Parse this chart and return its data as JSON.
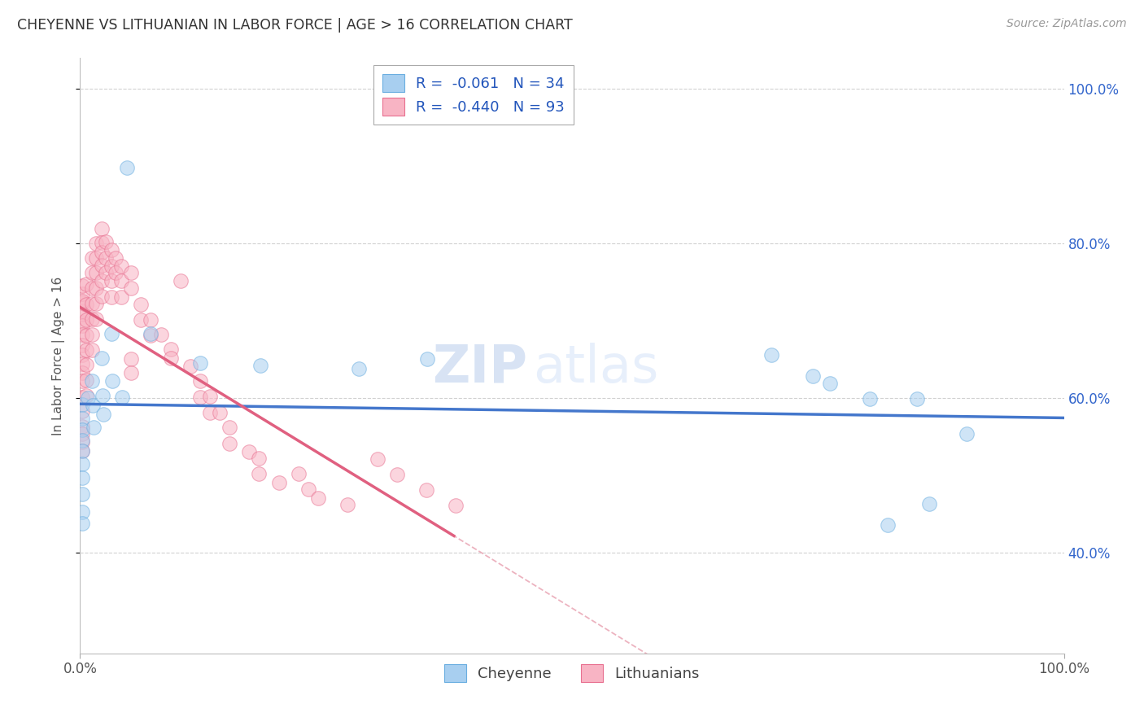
{
  "title": "CHEYENNE VS LITHUANIAN IN LABOR FORCE | AGE > 16 CORRELATION CHART",
  "source": "Source: ZipAtlas.com",
  "ylabel": "In Labor Force | Age > 16",
  "xlim": [
    0.0,
    1.0
  ],
  "ylim": [
    0.27,
    1.04
  ],
  "yticks": [
    0.4,
    0.6,
    0.8,
    1.0
  ],
  "ytick_labels": [
    "40.0%",
    "60.0%",
    "80.0%",
    "100.0%"
  ],
  "xtick_left": "0.0%",
  "xtick_right": "100.0%",
  "cheyenne_color": "#a8cff0",
  "cheyenne_edge": "#6aaee0",
  "lithuanian_color": "#f8b4c4",
  "lithuanian_edge": "#e87090",
  "trend_cheyenne_color": "#4477cc",
  "trend_lithuanian_color": "#e06080",
  "trend_dashed_color": "#e8a0b0",
  "watermark_zip": "ZIP",
  "watermark_atlas": "atlas",
  "cheyenne_points": [
    [
      0.002,
      0.592
    ],
    [
      0.002,
      0.574
    ],
    [
      0.002,
      0.559
    ],
    [
      0.002,
      0.546
    ],
    [
      0.002,
      0.532
    ],
    [
      0.002,
      0.515
    ],
    [
      0.002,
      0.497
    ],
    [
      0.002,
      0.476
    ],
    [
      0.002,
      0.453
    ],
    [
      0.002,
      0.438
    ],
    [
      0.008,
      0.6
    ],
    [
      0.012,
      0.622
    ],
    [
      0.013,
      0.591
    ],
    [
      0.014,
      0.562
    ],
    [
      0.022,
      0.652
    ],
    [
      0.023,
      0.603
    ],
    [
      0.024,
      0.579
    ],
    [
      0.032,
      0.683
    ],
    [
      0.033,
      0.622
    ],
    [
      0.043,
      0.601
    ],
    [
      0.048,
      0.898
    ],
    [
      0.072,
      0.683
    ],
    [
      0.122,
      0.646
    ],
    [
      0.183,
      0.642
    ],
    [
      0.283,
      0.638
    ],
    [
      0.353,
      0.651
    ],
    [
      0.703,
      0.656
    ],
    [
      0.745,
      0.629
    ],
    [
      0.762,
      0.619
    ],
    [
      0.803,
      0.599
    ],
    [
      0.821,
      0.436
    ],
    [
      0.851,
      0.599
    ],
    [
      0.863,
      0.463
    ],
    [
      0.901,
      0.554
    ]
  ],
  "lithuanian_points": [
    [
      0.002,
      0.698
    ],
    [
      0.002,
      0.713
    ],
    [
      0.002,
      0.724
    ],
    [
      0.002,
      0.735
    ],
    [
      0.002,
      0.746
    ],
    [
      0.002,
      0.726
    ],
    [
      0.002,
      0.709
    ],
    [
      0.002,
      0.694
    ],
    [
      0.002,
      0.682
    ],
    [
      0.002,
      0.669
    ],
    [
      0.002,
      0.656
    ],
    [
      0.002,
      0.645
    ],
    [
      0.002,
      0.633
    ],
    [
      0.002,
      0.622
    ],
    [
      0.002,
      0.601
    ],
    [
      0.002,
      0.583
    ],
    [
      0.002,
      0.564
    ],
    [
      0.002,
      0.554
    ],
    [
      0.002,
      0.543
    ],
    [
      0.002,
      0.532
    ],
    [
      0.006,
      0.748
    ],
    [
      0.006,
      0.721
    ],
    [
      0.006,
      0.701
    ],
    [
      0.006,
      0.681
    ],
    [
      0.006,
      0.662
    ],
    [
      0.006,
      0.643
    ],
    [
      0.006,
      0.623
    ],
    [
      0.006,
      0.603
    ],
    [
      0.012,
      0.781
    ],
    [
      0.012,
      0.762
    ],
    [
      0.012,
      0.742
    ],
    [
      0.012,
      0.722
    ],
    [
      0.012,
      0.702
    ],
    [
      0.012,
      0.682
    ],
    [
      0.012,
      0.662
    ],
    [
      0.016,
      0.8
    ],
    [
      0.016,
      0.781
    ],
    [
      0.016,
      0.762
    ],
    [
      0.016,
      0.742
    ],
    [
      0.016,
      0.722
    ],
    [
      0.016,
      0.702
    ],
    [
      0.022,
      0.819
    ],
    [
      0.022,
      0.801
    ],
    [
      0.022,
      0.789
    ],
    [
      0.022,
      0.772
    ],
    [
      0.022,
      0.752
    ],
    [
      0.022,
      0.732
    ],
    [
      0.026,
      0.802
    ],
    [
      0.026,
      0.781
    ],
    [
      0.026,
      0.762
    ],
    [
      0.032,
      0.792
    ],
    [
      0.032,
      0.771
    ],
    [
      0.032,
      0.752
    ],
    [
      0.032,
      0.731
    ],
    [
      0.036,
      0.781
    ],
    [
      0.036,
      0.762
    ],
    [
      0.042,
      0.771
    ],
    [
      0.042,
      0.752
    ],
    [
      0.042,
      0.731
    ],
    [
      0.052,
      0.762
    ],
    [
      0.052,
      0.742
    ],
    [
      0.052,
      0.651
    ],
    [
      0.052,
      0.633
    ],
    [
      0.062,
      0.721
    ],
    [
      0.062,
      0.701
    ],
    [
      0.072,
      0.701
    ],
    [
      0.072,
      0.681
    ],
    [
      0.082,
      0.682
    ],
    [
      0.092,
      0.663
    ],
    [
      0.092,
      0.652
    ],
    [
      0.102,
      0.752
    ],
    [
      0.112,
      0.641
    ],
    [
      0.122,
      0.622
    ],
    [
      0.122,
      0.601
    ],
    [
      0.132,
      0.602
    ],
    [
      0.132,
      0.581
    ],
    [
      0.142,
      0.581
    ],
    [
      0.152,
      0.562
    ],
    [
      0.152,
      0.541
    ],
    [
      0.172,
      0.531
    ],
    [
      0.182,
      0.522
    ],
    [
      0.182,
      0.502
    ],
    [
      0.202,
      0.491
    ],
    [
      0.222,
      0.502
    ],
    [
      0.232,
      0.482
    ],
    [
      0.242,
      0.471
    ],
    [
      0.272,
      0.462
    ],
    [
      0.302,
      0.521
    ],
    [
      0.322,
      0.501
    ],
    [
      0.352,
      0.481
    ],
    [
      0.382,
      0.461
    ]
  ]
}
